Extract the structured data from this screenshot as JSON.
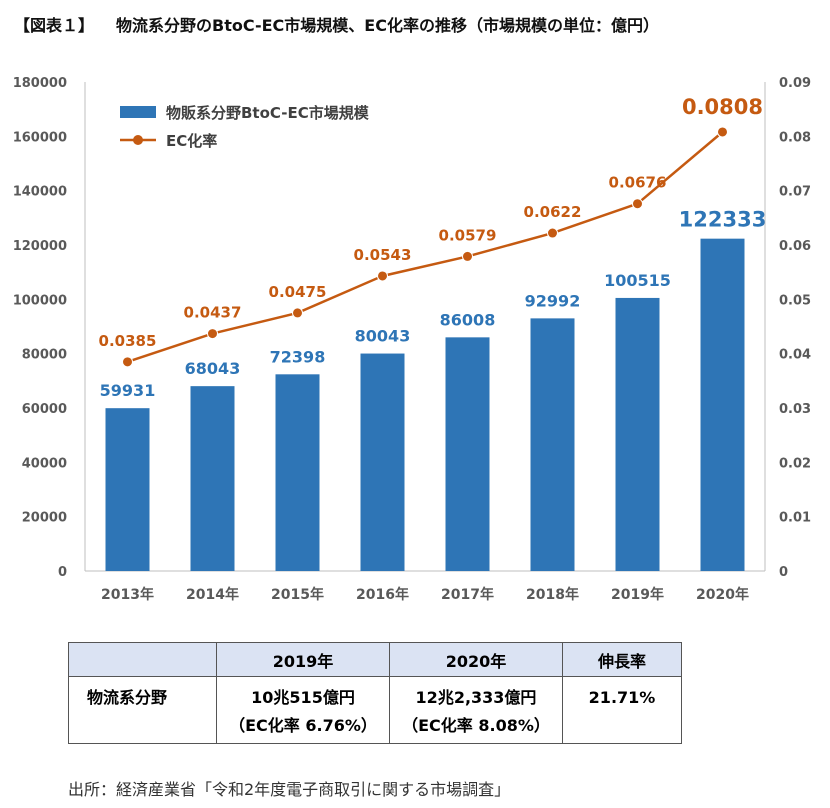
{
  "title": {
    "tag": "【図表１】",
    "text": "物流系分野のBtoC-EC市場規模、EC化率の推移（市場規模の単位：億円）"
  },
  "chart_data": {
    "type": "bar",
    "categories": [
      "2013年",
      "2014年",
      "2015年",
      "2016年",
      "2017年",
      "2018年",
      "2019年",
      "2020年"
    ],
    "series": [
      {
        "name": "物販系分野BtoC-EC市場規模",
        "type": "bar",
        "axis": "left",
        "values": [
          59931,
          68043,
          72398,
          80043,
          86008,
          92992,
          100515,
          122333
        ],
        "labels": [
          "59931",
          "68043",
          "72398",
          "80043",
          "86008",
          "92992",
          "100515",
          "122333"
        ],
        "color": "#2e75b6"
      },
      {
        "name": "EC化率",
        "type": "line",
        "axis": "right",
        "values": [
          0.0385,
          0.0437,
          0.0475,
          0.0543,
          0.0579,
          0.0622,
          0.0676,
          0.0808
        ],
        "labels": [
          "0.0385",
          "0.0437",
          "0.0475",
          "0.0543",
          "0.0579",
          "0.0622",
          "0.0676",
          "0.0808"
        ],
        "color": "#c55a11"
      }
    ],
    "left_axis": {
      "min": 0,
      "max": 180000,
      "ticks": [
        "0",
        "20000",
        "40000",
        "60000",
        "80000",
        "100000",
        "120000",
        "140000",
        "160000",
        "180000"
      ]
    },
    "right_axis": {
      "min": 0,
      "max": 0.09,
      "ticks": [
        "0",
        "0.01",
        "0.02",
        "0.03",
        "0.04",
        "0.05",
        "0.06",
        "0.07",
        "0.08",
        "0.09"
      ]
    },
    "legend_position": "top-left",
    "grid": false
  },
  "table": {
    "headers": [
      "",
      "2019年",
      "2020年",
      "伸長率"
    ],
    "row": {
      "label": "物流系分野",
      "y2019": "10兆515億円",
      "y2019_rate": "（EC化率 6.76%）",
      "y2020": "12兆2,333億円",
      "y2020_rate": "（EC化率 8.08%）",
      "growth": "21.71%"
    }
  },
  "source": "出所：経済産業省「令和2年度電子商取引に関する市場調査」"
}
